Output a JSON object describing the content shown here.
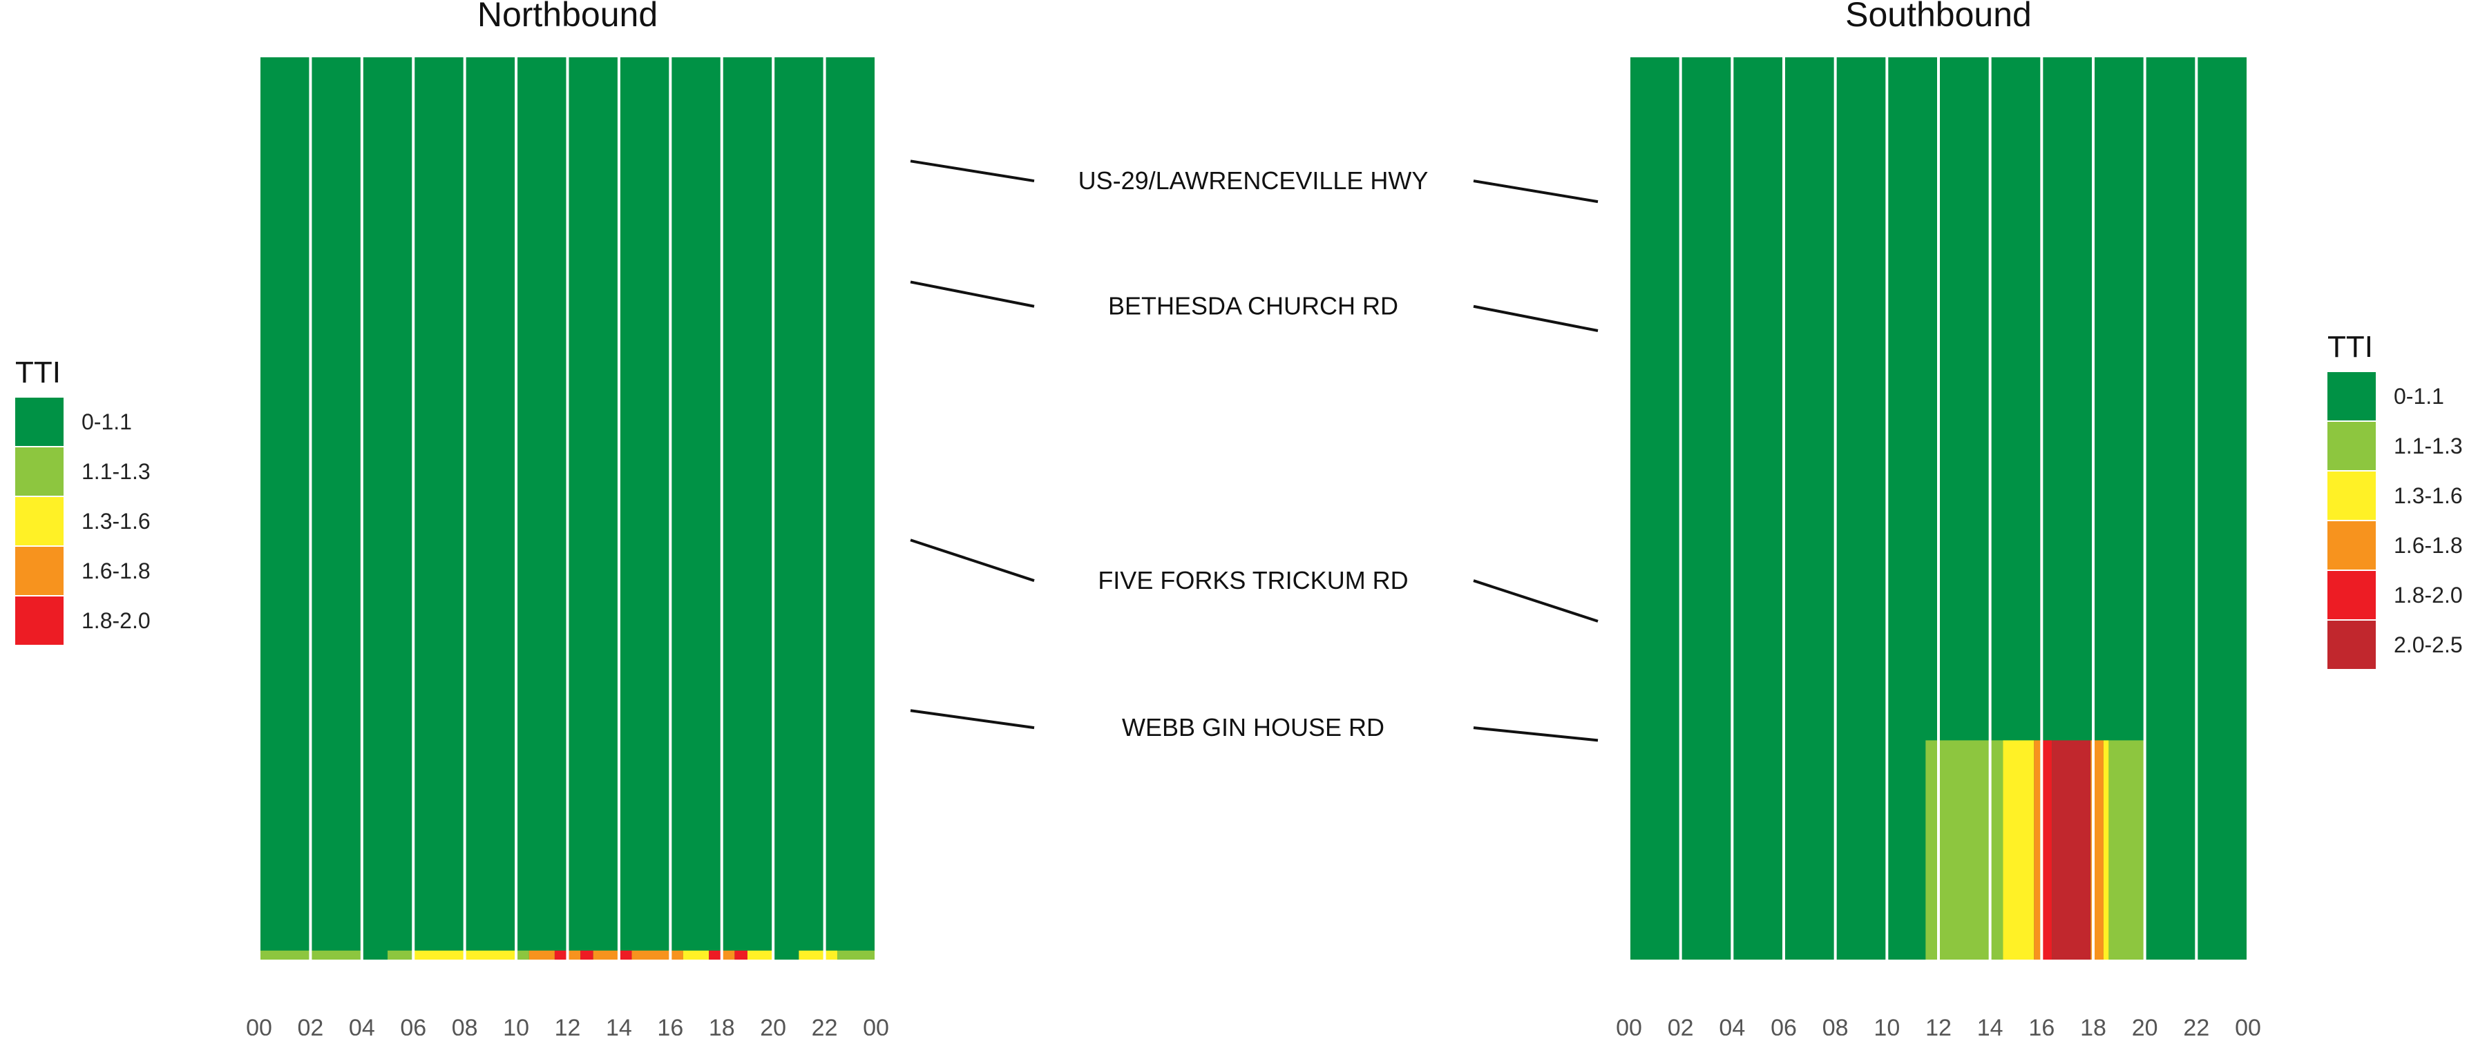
{
  "chart_data": {
    "type": "heatmap",
    "legend_title": "TTI",
    "hour_ticks": [
      "00",
      "02",
      "04",
      "06",
      "08",
      "10",
      "12",
      "14",
      "16",
      "18",
      "20",
      "22",
      "00"
    ],
    "segments": [
      "US-29/LAWRENCEVILLE HWY",
      "BETHESDA CHURCH RD",
      "FIVE FORKS TRICKUM RD",
      "WEBB GIN HOUSE RD"
    ],
    "panels": [
      {
        "title": "Northbound",
        "legend": [
          {
            "label": "0-1.1",
            "color": "#009245"
          },
          {
            "label": "1.1-1.3",
            "color": "#8DC63F"
          },
          {
            "label": "1.3-1.6",
            "color": "#FFF126"
          },
          {
            "label": "1.6-1.8",
            "color": "#F7931E"
          },
          {
            "label": "1.8-2.0",
            "color": "#ED1C24"
          }
        ],
        "base_category": "0-1.1",
        "segment_lines": [
          {
            "from": 0.115,
            "to": 0.137
          },
          {
            "from": 0.249,
            "to": 0.276
          },
          {
            "from": 0.535,
            "to": 0.58
          },
          {
            "from": 0.724,
            "to": 0.743
          }
        ],
        "cells": [
          {
            "h0": 0.0,
            "h1": 4.0,
            "y0": 0.99,
            "y1": 1.0,
            "cat": "1.1-1.3"
          },
          {
            "h0": 5.0,
            "h1": 6.0,
            "y0": 0.99,
            "y1": 1.0,
            "cat": "1.1-1.3"
          },
          {
            "h0": 6.0,
            "h1": 10.0,
            "y0": 0.99,
            "y1": 1.0,
            "cat": "1.3-1.6"
          },
          {
            "h0": 10.0,
            "h1": 10.5,
            "y0": 0.99,
            "y1": 1.0,
            "cat": "1.1-1.3"
          },
          {
            "h0": 10.5,
            "h1": 11.5,
            "y0": 0.99,
            "y1": 1.0,
            "cat": "1.6-1.8"
          },
          {
            "h0": 11.5,
            "h1": 12.0,
            "y0": 0.99,
            "y1": 1.0,
            "cat": "1.8-2.0"
          },
          {
            "h0": 12.0,
            "h1": 12.5,
            "y0": 0.99,
            "y1": 1.0,
            "cat": "1.6-1.8"
          },
          {
            "h0": 12.5,
            "h1": 13.0,
            "y0": 0.99,
            "y1": 1.0,
            "cat": "1.8-2.0"
          },
          {
            "h0": 13.0,
            "h1": 14.0,
            "y0": 0.99,
            "y1": 1.0,
            "cat": "1.6-1.8"
          },
          {
            "h0": 14.0,
            "h1": 14.5,
            "y0": 0.99,
            "y1": 1.0,
            "cat": "1.8-2.0"
          },
          {
            "h0": 14.5,
            "h1": 16.5,
            "y0": 0.99,
            "y1": 1.0,
            "cat": "1.6-1.8"
          },
          {
            "h0": 16.5,
            "h1": 17.5,
            "y0": 0.99,
            "y1": 1.0,
            "cat": "1.3-1.6"
          },
          {
            "h0": 17.5,
            "h1": 18.0,
            "y0": 0.99,
            "y1": 1.0,
            "cat": "1.8-2.0"
          },
          {
            "h0": 18.0,
            "h1": 18.5,
            "y0": 0.99,
            "y1": 1.0,
            "cat": "1.6-1.8"
          },
          {
            "h0": 18.5,
            "h1": 19.0,
            "y0": 0.99,
            "y1": 1.0,
            "cat": "1.8-2.0"
          },
          {
            "h0": 19.0,
            "h1": 20.0,
            "y0": 0.99,
            "y1": 1.0,
            "cat": "1.3-1.6"
          },
          {
            "h0": 21.0,
            "h1": 22.5,
            "y0": 0.99,
            "y1": 1.0,
            "cat": "1.3-1.6"
          },
          {
            "h0": 22.5,
            "h1": 24.0,
            "y0": 0.99,
            "y1": 1.0,
            "cat": "1.1-1.3"
          }
        ]
      },
      {
        "title": "Southbound",
        "legend": [
          {
            "label": "0-1.1",
            "color": "#009245"
          },
          {
            "label": "1.1-1.3",
            "color": "#8DC63F"
          },
          {
            "label": "1.3-1.6",
            "color": "#FFF126"
          },
          {
            "label": "1.6-1.8",
            "color": "#F7931E"
          },
          {
            "label": "1.8-2.0",
            "color": "#ED1C24"
          },
          {
            "label": "2.0-2.5",
            "color": "#C1272D"
          }
        ],
        "base_category": "0-1.1",
        "segment_lines": [
          {
            "from": 0.137,
            "to": 0.16
          },
          {
            "from": 0.276,
            "to": 0.303
          },
          {
            "from": 0.58,
            "to": 0.625
          },
          {
            "from": 0.743,
            "to": 0.757
          }
        ],
        "cells": [
          {
            "h0": 11.5,
            "h1": 12.0,
            "y0": 0.757,
            "y1": 1.0,
            "cat": "1.1-1.3"
          },
          {
            "h0": 12.0,
            "h1": 14.5,
            "y0": 0.757,
            "y1": 1.0,
            "cat": "1.1-1.3"
          },
          {
            "h0": 14.5,
            "h1": 15.7,
            "y0": 0.757,
            "y1": 1.0,
            "cat": "1.3-1.6"
          },
          {
            "h0": 15.7,
            "h1": 16.0,
            "y0": 0.757,
            "y1": 1.0,
            "cat": "1.6-1.8"
          },
          {
            "h0": 16.0,
            "h1": 16.4,
            "y0": 0.757,
            "y1": 1.0,
            "cat": "1.8-2.0"
          },
          {
            "h0": 16.4,
            "h1": 17.9,
            "y0": 0.757,
            "y1": 1.0,
            "cat": "2.0-2.5"
          },
          {
            "h0": 17.9,
            "h1": 18.4,
            "y0": 0.757,
            "y1": 1.0,
            "cat": "1.6-1.8"
          },
          {
            "h0": 18.4,
            "h1": 18.6,
            "y0": 0.757,
            "y1": 1.0,
            "cat": "1.3-1.6"
          },
          {
            "h0": 18.6,
            "h1": 20.0,
            "y0": 0.757,
            "y1": 1.0,
            "cat": "1.1-1.3"
          }
        ]
      }
    ]
  }
}
